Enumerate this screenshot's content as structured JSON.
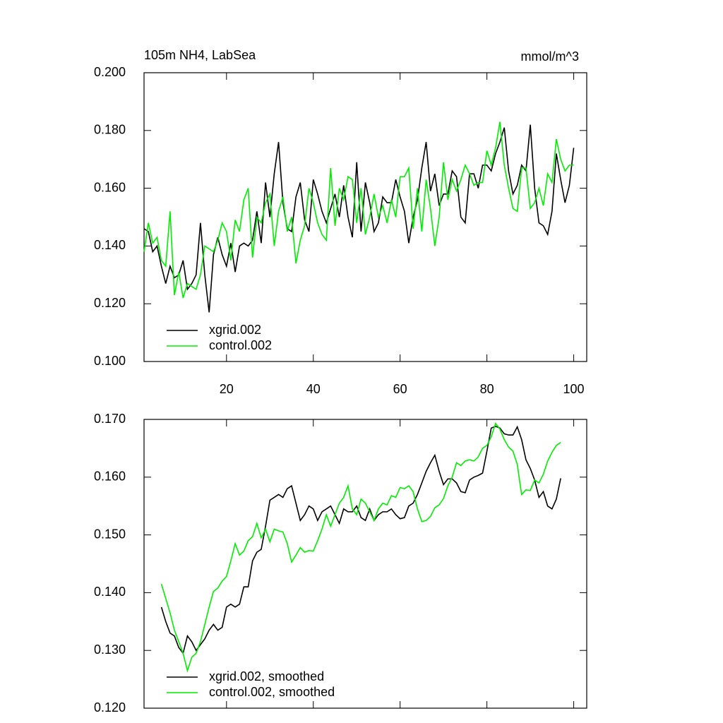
{
  "chart_data": [
    {
      "type": "line",
      "title": "105m NH4, LabSea",
      "subtitle": "mmol/m^3",
      "x": [
        1,
        2,
        3,
        4,
        5,
        6,
        7,
        8,
        9,
        10,
        11,
        12,
        13,
        14,
        15,
        16,
        17,
        18,
        19,
        20,
        21,
        22,
        23,
        24,
        25,
        26,
        27,
        28,
        29,
        30,
        31,
        32,
        33,
        34,
        35,
        36,
        37,
        38,
        39,
        40,
        41,
        42,
        43,
        44,
        45,
        46,
        47,
        48,
        49,
        50,
        51,
        52,
        53,
        54,
        55,
        56,
        57,
        58,
        59,
        60,
        61,
        62,
        63,
        64,
        65,
        66,
        67,
        68,
        69,
        70,
        71,
        72,
        73,
        74,
        75,
        76,
        77,
        78,
        79,
        80,
        81,
        82,
        83,
        84,
        85,
        86,
        87,
        88,
        89,
        90,
        91,
        92,
        93,
        94,
        95,
        96,
        97,
        98,
        99,
        100
      ],
      "series": [
        {
          "name": "xgrid.002",
          "color": "#000000",
          "values": [
            0.146,
            0.145,
            0.138,
            0.14,
            0.133,
            0.127,
            0.133,
            0.129,
            0.13,
            0.135,
            0.125,
            0.127,
            0.13,
            0.148,
            0.13,
            0.117,
            0.137,
            0.143,
            0.137,
            0.133,
            0.141,
            0.131,
            0.14,
            0.141,
            0.14,
            0.142,
            0.152,
            0.141,
            0.162,
            0.15,
            0.165,
            0.176,
            0.155,
            0.146,
            0.145,
            0.157,
            0.162,
            0.149,
            0.145,
            0.163,
            0.158,
            0.152,
            0.148,
            0.153,
            0.158,
            0.15,
            0.161,
            0.15,
            0.143,
            0.169,
            0.145,
            0.162,
            0.155,
            0.145,
            0.148,
            0.157,
            0.155,
            0.155,
            0.163,
            0.157,
            0.152,
            0.141,
            0.15,
            0.156,
            0.167,
            0.176,
            0.159,
            0.165,
            0.154,
            0.158,
            0.158,
            0.166,
            0.164,
            0.15,
            0.148,
            0.165,
            0.165,
            0.16,
            0.168,
            0.168,
            0.166,
            0.172,
            0.176,
            0.181,
            0.166,
            0.158,
            0.161,
            0.168,
            0.166,
            0.182,
            0.16,
            0.148,
            0.147,
            0.144,
            0.152,
            0.172,
            0.163,
            0.155,
            0.161,
            0.174
          ]
        },
        {
          "name": "control.002",
          "color": "#00ee00",
          "values": [
            0.138,
            0.148,
            0.141,
            0.143,
            0.135,
            0.133,
            0.152,
            0.123,
            0.131,
            0.122,
            0.127,
            0.126,
            0.125,
            0.13,
            0.14,
            0.139,
            0.138,
            0.142,
            0.148,
            0.145,
            0.135,
            0.149,
            0.145,
            0.156,
            0.16,
            0.136,
            0.15,
            0.148,
            0.155,
            0.158,
            0.14,
            0.152,
            0.157,
            0.145,
            0.15,
            0.134,
            0.142,
            0.147,
            0.16,
            0.155,
            0.148,
            0.144,
            0.142,
            0.167,
            0.147,
            0.16,
            0.156,
            0.164,
            0.163,
            0.148,
            0.16,
            0.144,
            0.15,
            0.158,
            0.15,
            0.154,
            0.148,
            0.156,
            0.15,
            0.164,
            0.164,
            0.167,
            0.146,
            0.16,
            0.145,
            0.163,
            0.153,
            0.14,
            0.15,
            0.169,
            0.156,
            0.163,
            0.159,
            0.163,
            0.168,
            0.165,
            0.161,
            0.162,
            0.162,
            0.173,
            0.168,
            0.174,
            0.183,
            0.168,
            0.16,
            0.153,
            0.152,
            0.167,
            0.167,
            0.153,
            0.155,
            0.16,
            0.154,
            0.165,
            0.162,
            0.177,
            0.17,
            0.166,
            0.168,
            0.168
          ]
        }
      ],
      "xlim": [
        1,
        103
      ],
      "xticks": [
        20,
        40,
        60,
        80,
        100
      ],
      "ylim": [
        0.1,
        0.2
      ],
      "yticks": [
        {
          "value": 0.1,
          "label": "0.100"
        },
        {
          "value": 0.12,
          "label": "0.120"
        },
        {
          "value": 0.14,
          "label": "0.140"
        },
        {
          "value": 0.16,
          "label": "0.160"
        },
        {
          "value": 0.18,
          "label": "0.180"
        },
        {
          "value": 0.2,
          "label": "0.200"
        }
      ],
      "legend": "lower left"
    },
    {
      "type": "line",
      "x": [
        5,
        6,
        7,
        8,
        9,
        10,
        11,
        12,
        13,
        14,
        15,
        16,
        17,
        18,
        19,
        20,
        21,
        22,
        23,
        24,
        25,
        26,
        27,
        28,
        29,
        30,
        31,
        32,
        33,
        34,
        35,
        36,
        37,
        38,
        39,
        40,
        41,
        42,
        43,
        44,
        45,
        46,
        47,
        48,
        49,
        50,
        51,
        52,
        53,
        54,
        55,
        56,
        57,
        58,
        59,
        60,
        61,
        62,
        63,
        64,
        65,
        66,
        67,
        68,
        69,
        70,
        71,
        72,
        73,
        74,
        75,
        76,
        77,
        78,
        79,
        80,
        81,
        82,
        83,
        84,
        85,
        86,
        87,
        88,
        89,
        90,
        91,
        92,
        93,
        94,
        95,
        96,
        97
      ],
      "series": [
        {
          "name": "xgrid.002, smoothed",
          "color": "#000000",
          "values": [
            0.1375,
            0.135,
            0.133,
            0.1325,
            0.1305,
            0.1295,
            0.1325,
            0.1315,
            0.13,
            0.131,
            0.132,
            0.1335,
            0.1345,
            0.1335,
            0.134,
            0.1375,
            0.138,
            0.1375,
            0.138,
            0.141,
            0.141,
            0.1455,
            0.147,
            0.1475,
            0.1515,
            0.156,
            0.1565,
            0.157,
            0.1565,
            0.158,
            0.1585,
            0.1555,
            0.1525,
            0.1535,
            0.155,
            0.1545,
            0.1525,
            0.154,
            0.1545,
            0.155,
            0.1535,
            0.152,
            0.1545,
            0.154,
            0.154,
            0.155,
            0.153,
            0.1525,
            0.1545,
            0.1525,
            0.1535,
            0.154,
            0.154,
            0.1545,
            0.1535,
            0.1528,
            0.153,
            0.155,
            0.1555,
            0.157,
            0.159,
            0.161,
            0.1625,
            0.1638,
            0.161,
            0.1587,
            0.1597,
            0.1597,
            0.159,
            0.1575,
            0.1573,
            0.1595,
            0.16,
            0.1603,
            0.1607,
            0.1645,
            0.1685,
            0.1688,
            0.1685,
            0.1675,
            0.1673,
            0.1673,
            0.1687,
            0.1665,
            0.163,
            0.1615,
            0.1595,
            0.1565,
            0.1575,
            0.155,
            0.1545,
            0.1562,
            0.1598
          ]
        },
        {
          "name": "control.002, smoothed",
          "color": "#00ee00",
          "values": [
            0.1415,
            0.139,
            0.1365,
            0.1335,
            0.1315,
            0.1295,
            0.1265,
            0.1288,
            0.1295,
            0.1315,
            0.1345,
            0.1375,
            0.1402,
            0.1408,
            0.142,
            0.1428,
            0.1455,
            0.1485,
            0.1465,
            0.1472,
            0.149,
            0.1497,
            0.152,
            0.1495,
            0.151,
            0.1488,
            0.151,
            0.1507,
            0.1505,
            0.1485,
            0.1453,
            0.1465,
            0.1478,
            0.147,
            0.1473,
            0.1472,
            0.149,
            0.151,
            0.1535,
            0.1515,
            0.1535,
            0.1555,
            0.1565,
            0.1585,
            0.1545,
            0.1535,
            0.1562,
            0.1555,
            0.154,
            0.1525,
            0.1545,
            0.1555,
            0.1552,
            0.1568,
            0.1565,
            0.1582,
            0.158,
            0.1585,
            0.1575,
            0.1545,
            0.1523,
            0.1525,
            0.1532,
            0.1547,
            0.1552,
            0.1563,
            0.1585,
            0.16,
            0.1625,
            0.162,
            0.1628,
            0.163,
            0.1628,
            0.1635,
            0.165,
            0.1655,
            0.167,
            0.1693,
            0.1683,
            0.1665,
            0.1652,
            0.1645,
            0.1622,
            0.157,
            0.1578,
            0.1577,
            0.1595,
            0.159,
            0.1605,
            0.1628,
            0.1643,
            0.1655,
            0.166
          ]
        }
      ],
      "xlim": [
        1,
        103
      ],
      "xticks": [
        20,
        40,
        60,
        80,
        100
      ],
      "ylim": [
        0.12,
        0.17
      ],
      "yticks": [
        {
          "value": 0.12,
          "label": "0.120"
        },
        {
          "value": 0.13,
          "label": "0.130"
        },
        {
          "value": 0.14,
          "label": "0.140"
        },
        {
          "value": 0.15,
          "label": "0.150"
        },
        {
          "value": 0.16,
          "label": "0.160"
        },
        {
          "value": 0.17,
          "label": "0.170"
        }
      ],
      "legend": "lower left"
    }
  ]
}
